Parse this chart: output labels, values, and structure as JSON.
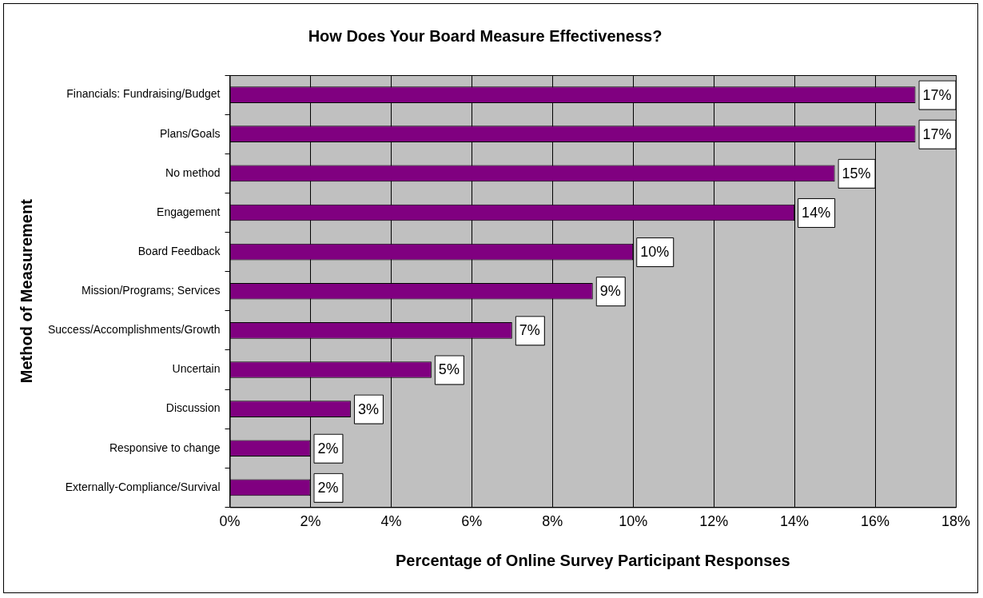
{
  "chart_data": {
    "type": "bar",
    "orientation": "horizontal",
    "title": "How Does Your Board Measure Effectiveness?",
    "xlabel": "Percentage of Online Survey Participant Responses",
    "ylabel": "Method of Measurement",
    "categories": [
      "Financials: Fundraising/Budget",
      "Plans/Goals",
      "No method",
      "Engagement",
      "Board Feedback",
      "Mission/Programs; Services",
      "Success/Accomplishments/Growth",
      "Uncertain",
      "Discussion",
      "Responsive to change",
      "Externally-Compliance/Survival"
    ],
    "values": [
      17,
      17,
      15,
      14,
      10,
      9,
      7,
      5,
      3,
      2,
      2
    ],
    "value_labels": [
      "17%",
      "17%",
      "15%",
      "14%",
      "10%",
      "9%",
      "7%",
      "5%",
      "3%",
      "2%",
      "2%"
    ],
    "color": "#800080",
    "xlim": [
      0,
      18
    ],
    "xticks": [
      {
        "value": 0,
        "label": "0%"
      },
      {
        "value": 2,
        "label": "2%"
      },
      {
        "value": 4,
        "label": "4%"
      },
      {
        "value": 6,
        "label": "6%"
      },
      {
        "value": 8,
        "label": "8%"
      },
      {
        "value": 10,
        "label": "10%"
      },
      {
        "value": 12,
        "label": "12%"
      },
      {
        "value": 14,
        "label": "14%"
      },
      {
        "value": 16,
        "label": "16%"
      },
      {
        "value": 18,
        "label": "18%"
      }
    ],
    "grid": "x",
    "legend": false
  }
}
